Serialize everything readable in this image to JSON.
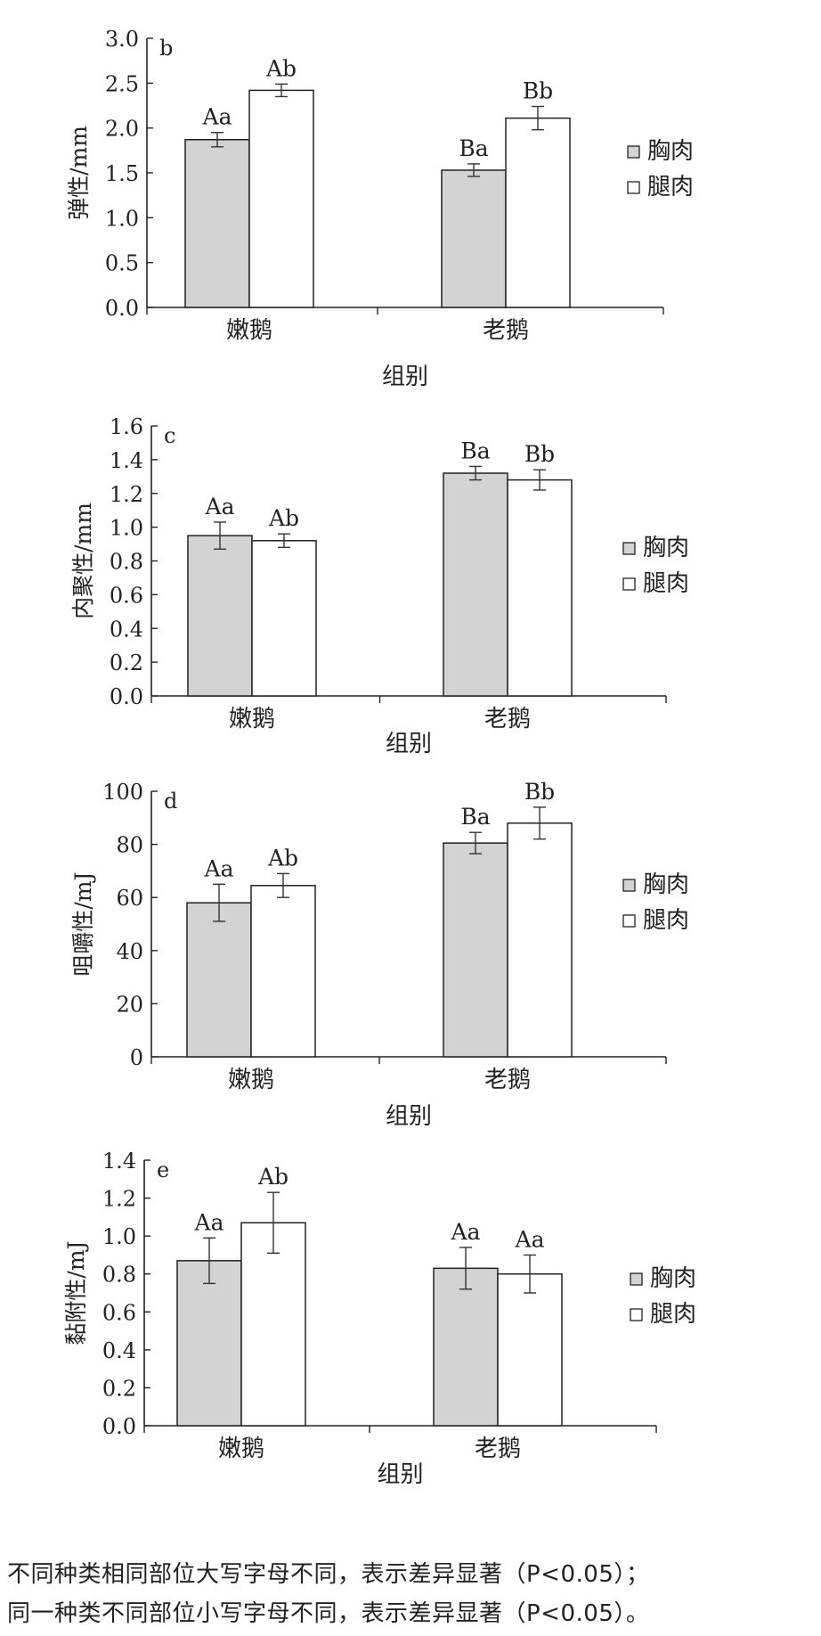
{
  "legend": [
    "胸肉",
    "腿肉"
  ],
  "chart_data": [
    {
      "type": "bar",
      "panel_label": "b",
      "ylabel": "弹性/mm",
      "xlabel": "组别",
      "categories": [
        "嫩鹅",
        "老鹅"
      ],
      "ylim": [
        0,
        3.0
      ],
      "ytick_labels": [
        "0.0",
        "0.5",
        "1.0",
        "1.5",
        "2.0",
        "2.5",
        "3.0"
      ],
      "series": [
        {
          "name": "胸肉",
          "color": "#d3d3d3",
          "values": [
            1.87,
            1.53
          ],
          "errors": [
            0.08,
            0.07
          ],
          "labels": [
            "Aa",
            "Ba"
          ]
        },
        {
          "name": "腿肉",
          "color": "#ffffff",
          "values": [
            2.42,
            2.11
          ],
          "errors": [
            0.07,
            0.13
          ],
          "labels": [
            "Ab",
            "Bb"
          ]
        }
      ]
    },
    {
      "type": "bar",
      "panel_label": "c",
      "ylabel": "内聚性/mm",
      "xlabel": "组别",
      "categories": [
        "嫩鹅",
        "老鹅"
      ],
      "ylim": [
        0,
        1.6
      ],
      "ytick_labels": [
        "0.0",
        "0.2",
        "0.4",
        "0.6",
        "0.8",
        "1.0",
        "1.2",
        "1.4",
        "1.6"
      ],
      "series": [
        {
          "name": "胸肉",
          "color": "#d3d3d3",
          "values": [
            0.95,
            1.32
          ],
          "errors": [
            0.08,
            0.04
          ],
          "labels": [
            "Aa",
            "Ba"
          ]
        },
        {
          "name": "腿肉",
          "color": "#ffffff",
          "values": [
            0.92,
            1.28
          ],
          "errors": [
            0.04,
            0.06
          ],
          "labels": [
            "Ab",
            "Bb"
          ]
        }
      ]
    },
    {
      "type": "bar",
      "panel_label": "d",
      "ylabel": "咀嚼性/mJ",
      "xlabel": "组别",
      "categories": [
        "嫩鹅",
        "老鹅"
      ],
      "ylim": [
        0,
        100
      ],
      "ytick_labels": [
        "0",
        "20",
        "40",
        "60",
        "80",
        "100"
      ],
      "series": [
        {
          "name": "胸肉",
          "color": "#d3d3d3",
          "values": [
            58,
            80.5
          ],
          "errors": [
            7,
            4
          ],
          "labels": [
            "Aa",
            "Ba"
          ]
        },
        {
          "name": "腿肉",
          "color": "#ffffff",
          "values": [
            64.5,
            88
          ],
          "errors": [
            4.5,
            6
          ],
          "labels": [
            "Ab",
            "Bb"
          ]
        }
      ]
    },
    {
      "type": "bar",
      "panel_label": "e",
      "ylabel": "黏附性/mJ",
      "xlabel": "组别",
      "categories": [
        "嫩鹅",
        "老鹅"
      ],
      "ylim": [
        0,
        1.4
      ],
      "ytick_labels": [
        "0.0",
        "0.2",
        "0.4",
        "0.6",
        "0.8",
        "1.0",
        "1.2",
        "1.4"
      ],
      "series": [
        {
          "name": "胸肉",
          "color": "#d3d3d3",
          "values": [
            0.87,
            0.83
          ],
          "errors": [
            0.12,
            0.11
          ],
          "labels": [
            "Aa",
            "Aa"
          ]
        },
        {
          "name": "腿肉",
          "color": "#ffffff",
          "values": [
            1.07,
            0.8
          ],
          "errors": [
            0.16,
            0.1
          ],
          "labels": [
            "Ab",
            "Aa"
          ]
        }
      ]
    }
  ],
  "footnote": {
    "line1": "不同种类相同部位大写字母不同，表示差异显著（P<0.05）；",
    "line2": "同一种类不同部位小写字母不同，表示差异显著（P<0.05）。"
  }
}
